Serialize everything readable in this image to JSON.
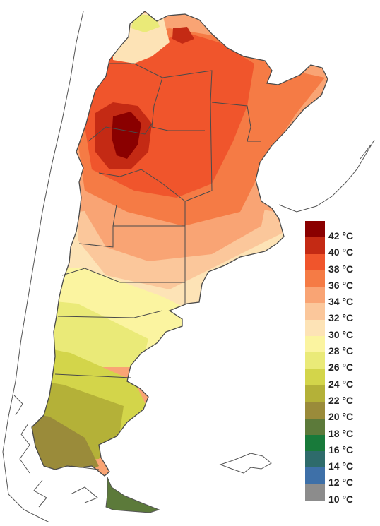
{
  "map": {
    "subject": "Argentina maximum temperature map",
    "colors": {
      "outline": "#4a4a4a",
      "neighbor_coast": "#555555",
      "t42": "#8a0000",
      "t40": "#c42a14",
      "t38": "#f0552c",
      "t36": "#f57b45",
      "t34": "#f9a474",
      "t32": "#fbc79b",
      "t30": "#fde3b6",
      "t28": "#fbf4a0",
      "t26": "#eaea78",
      "t24": "#d3d54a",
      "t22": "#b4b138",
      "t20": "#9a8b3a",
      "t18": "#5c7a3a",
      "t16": "#187a3a",
      "t14": "#2e6b6b",
      "t12": "#3e70a8",
      "t10": "#8c8c8c"
    }
  },
  "legend": {
    "items": [
      {
        "label": "42 °C",
        "color": "#8a0000"
      },
      {
        "label": "40 °C",
        "color": "#c42a14"
      },
      {
        "label": "38 °C",
        "color": "#f0552c"
      },
      {
        "label": "36 °C",
        "color": "#f57b45"
      },
      {
        "label": "34 °C",
        "color": "#f9a474"
      },
      {
        "label": "32 °C",
        "color": "#fbc79b"
      },
      {
        "label": "30 °C",
        "color": "#fde3b6"
      },
      {
        "label": "28 °C",
        "color": "#fbf4a0"
      },
      {
        "label": "26 °C",
        "color": "#eaea78"
      },
      {
        "label": "24 °C",
        "color": "#d3d54a"
      },
      {
        "label": "22 °C",
        "color": "#b4b138"
      },
      {
        "label": "20 °C",
        "color": "#9a8b3a"
      },
      {
        "label": "18 °C",
        "color": "#5c7a3a"
      },
      {
        "label": "16 °C",
        "color": "#187a3a"
      },
      {
        "label": "14 °C",
        "color": "#2e6b6b"
      },
      {
        "label": "12 °C",
        "color": "#3e70a8"
      },
      {
        "label": "10 °C",
        "color": "#8c8c8c"
      }
    ]
  }
}
